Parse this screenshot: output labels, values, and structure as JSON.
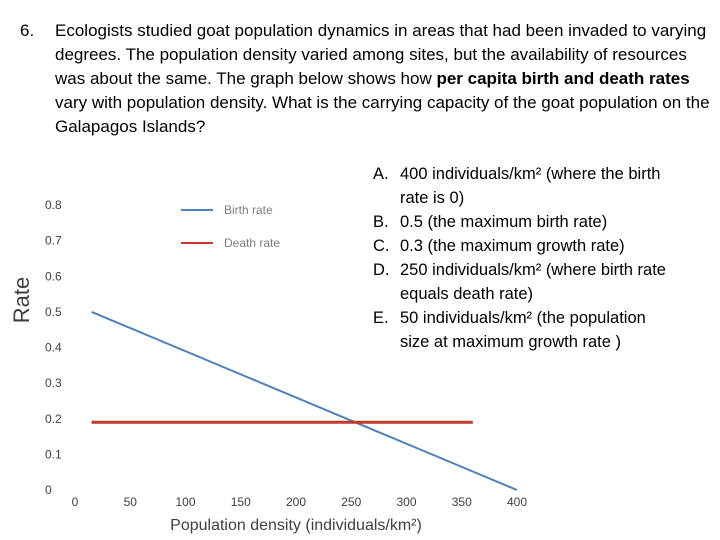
{
  "question": {
    "number": "6.",
    "text_before": "Ecologists studied goat population dynamics in areas that had been invaded to varying degrees. The population density varied among sites, but the availability of resources was about the same. The graph below shows how ",
    "text_bold": "per capita birth and death rates",
    "text_after": " vary with population density. What is the carrying capacity of the goat population on the Galapagos Islands?"
  },
  "answers": [
    {
      "letter": "A.",
      "text": "400 individuals/km² (where the birth rate is 0)"
    },
    {
      "letter": "B.",
      "text": "0.5 (the maximum birth rate)"
    },
    {
      "letter": "C.",
      "text": "0.3 (the maximum growth rate)"
    },
    {
      "letter": "D.",
      "text": "250 individuals/km² (where birth rate equals death rate)"
    },
    {
      "letter": "E.",
      "text": "50 individuals/km² (the population size at maximum growth rate )"
    }
  ],
  "chart_data": {
    "type": "line",
    "xlabel": "Population density (individuals/km²)",
    "ylabel": "Rate",
    "xlim": [
      0,
      400
    ],
    "ylim": [
      0,
      0.8
    ],
    "x_ticks": [
      "0",
      "50",
      "100",
      "150",
      "200",
      "250",
      "300",
      "350",
      "400"
    ],
    "y_ticks": [
      "0",
      "0.1",
      "0.2",
      "0.3",
      "0.4",
      "0.5",
      "0.6",
      "0.7",
      "0.8"
    ],
    "grid": false,
    "legend_position": "top-left",
    "series": [
      {
        "name": "Birth rate",
        "color": "#4f81bd",
        "x": [
          15,
          400
        ],
        "y": [
          0.5,
          0
        ]
      },
      {
        "name": "Death rate",
        "color": "#c0392b",
        "x": [
          15,
          360
        ],
        "y": [
          0.19,
          0.19
        ]
      }
    ]
  }
}
